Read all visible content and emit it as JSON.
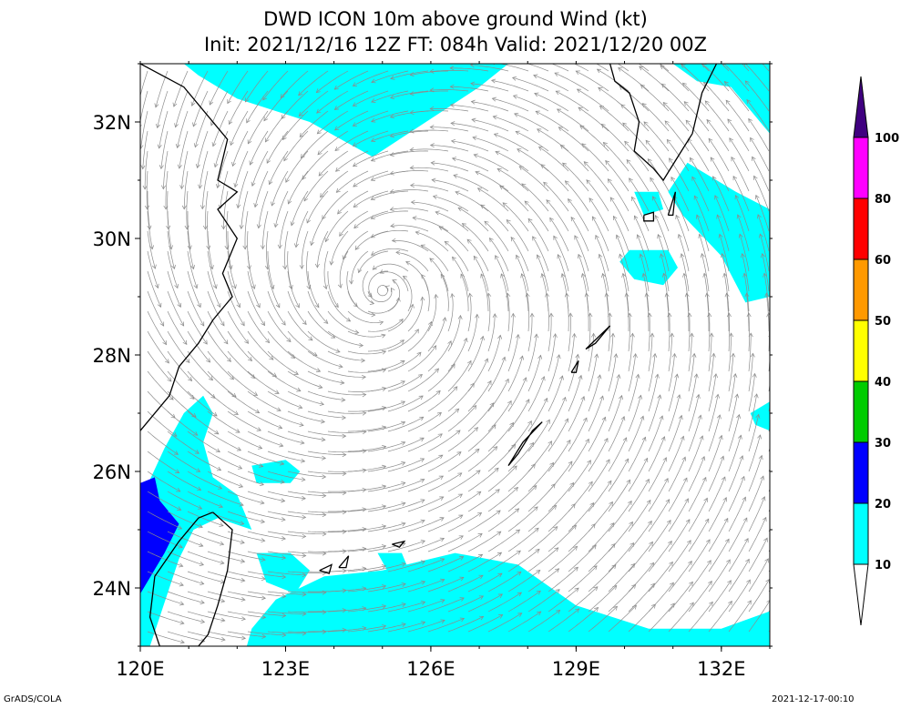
{
  "chart_data": {
    "type": "map",
    "title_line1": "DWD ICON 10m above ground Wind (kt)",
    "title_line2": "Init: 2021/12/16 12Z  FT: 084h  Valid: 2021/12/20 00Z",
    "lon_range": [
      120,
      133
    ],
    "lat_range": [
      23,
      33
    ],
    "x_ticks": [
      {
        "value": 120,
        "label": "120E"
      },
      {
        "value": 123,
        "label": "123E"
      },
      {
        "value": 126,
        "label": "126E"
      },
      {
        "value": 129,
        "label": "129E"
      },
      {
        "value": 132,
        "label": "132E"
      }
    ],
    "y_ticks": [
      {
        "value": 24,
        "label": "24N"
      },
      {
        "value": 26,
        "label": "26N"
      },
      {
        "value": 28,
        "label": "28N"
      },
      {
        "value": 30,
        "label": "30N"
      },
      {
        "value": 32,
        "label": "32N"
      }
    ],
    "grid": false,
    "cyclone_center": {
      "lon": 125.0,
      "lat": 29.1
    },
    "colorbar": {
      "position": "right",
      "levels": [
        {
          "label": "10",
          "color": "#ffffff"
        },
        {
          "label": "20",
          "color": "#00ffff"
        },
        {
          "label": "30",
          "color": "#0000ff"
        },
        {
          "label": "40",
          "color": "#00cc00"
        },
        {
          "label": "50",
          "color": "#ffff00"
        },
        {
          "label": "60",
          "color": "#ff9900"
        },
        {
          "label": "80",
          "color": "#ff0000"
        },
        {
          "label": "100",
          "color": "#ff00ff"
        }
      ],
      "over_color": "#400080"
    },
    "wind_regions": [
      {
        "name": "north-band",
        "speed_kt": "10-20",
        "color": "#00ffff",
        "polygon": [
          [
            120.9,
            33
          ],
          [
            127.6,
            33
          ],
          [
            127.0,
            32.6
          ],
          [
            124.8,
            31.4
          ],
          [
            123.5,
            32.0
          ],
          [
            122.0,
            32.4
          ],
          [
            121.2,
            32.8
          ]
        ]
      },
      {
        "name": "northeast-band",
        "speed_kt": "10-20",
        "color": "#00ffff",
        "polygon": [
          [
            131.0,
            33
          ],
          [
            133,
            33
          ],
          [
            133,
            31.8
          ],
          [
            132.2,
            32.6
          ],
          [
            131.5,
            32.7
          ]
        ]
      },
      {
        "name": "east-patch",
        "speed_kt": "10-20",
        "color": "#00ffff",
        "polygon": [
          [
            131.3,
            31.3
          ],
          [
            132.3,
            30.8
          ],
          [
            133,
            30.5
          ],
          [
            133,
            29.0
          ],
          [
            132.5,
            28.9
          ],
          [
            132.0,
            29.7
          ],
          [
            131.2,
            30.4
          ],
          [
            130.9,
            30.8
          ]
        ]
      },
      {
        "name": "east-small-1",
        "speed_kt": "10-20",
        "color": "#00ffff",
        "polygon": [
          [
            130.2,
            30.8
          ],
          [
            130.7,
            30.8
          ],
          [
            130.8,
            30.5
          ],
          [
            130.4,
            30.4
          ]
        ]
      },
      {
        "name": "east-small-2",
        "speed_kt": "10-20",
        "color": "#00ffff",
        "polygon": [
          [
            130.1,
            29.8
          ],
          [
            130.9,
            29.8
          ],
          [
            131.1,
            29.5
          ],
          [
            130.8,
            29.2
          ],
          [
            130.2,
            29.3
          ],
          [
            129.9,
            29.6
          ]
        ]
      },
      {
        "name": "east-small-3",
        "speed_kt": "10-20",
        "color": "#00ffff",
        "polygon": [
          [
            132.6,
            27.0
          ],
          [
            133,
            27.2
          ],
          [
            133,
            26.7
          ],
          [
            132.7,
            26.8
          ]
        ]
      },
      {
        "name": "south-band",
        "speed_kt": "10-20",
        "color": "#00ffff",
        "polygon": [
          [
            122.2,
            23.0
          ],
          [
            133,
            23.0
          ],
          [
            133,
            23.6
          ],
          [
            132.0,
            23.3
          ],
          [
            130.5,
            23.3
          ],
          [
            129.0,
            23.7
          ],
          [
            127.8,
            24.4
          ],
          [
            126.5,
            24.6
          ],
          [
            125.0,
            24.3
          ],
          [
            123.8,
            24.2
          ],
          [
            122.8,
            23.8
          ],
          [
            122.3,
            23.3
          ]
        ]
      },
      {
        "name": "west-band",
        "speed_kt": "10-20",
        "color": "#00ffff",
        "polygon": [
          [
            120.0,
            25.5
          ],
          [
            120.5,
            26.4
          ],
          [
            120.9,
            27.0
          ],
          [
            121.3,
            27.3
          ],
          [
            121.5,
            27.0
          ],
          [
            121.3,
            26.5
          ],
          [
            121.5,
            25.9
          ],
          [
            122.0,
            25.6
          ],
          [
            122.3,
            25.0
          ],
          [
            121.6,
            25.2
          ],
          [
            121.1,
            25.0
          ],
          [
            120.8,
            24.5
          ],
          [
            120.4,
            23.5
          ],
          [
            120.2,
            23.0
          ],
          [
            120.0,
            23.0
          ]
        ]
      },
      {
        "name": "west-blue",
        "speed_kt": "20-30",
        "color": "#0000ff",
        "polygon": [
          [
            120.0,
            23.9
          ],
          [
            120.5,
            24.6
          ],
          [
            120.8,
            25.1
          ],
          [
            120.4,
            25.5
          ],
          [
            120.3,
            25.9
          ],
          [
            120.0,
            25.8
          ]
        ]
      },
      {
        "name": "mid-patch-1",
        "speed_kt": "10-20",
        "color": "#00ffff",
        "polygon": [
          [
            122.3,
            26.1
          ],
          [
            123.0,
            26.2
          ],
          [
            123.3,
            26.0
          ],
          [
            123.1,
            25.8
          ],
          [
            122.4,
            25.8
          ]
        ]
      },
      {
        "name": "mid-patch-2",
        "speed_kt": "10-20",
        "color": "#00ffff",
        "polygon": [
          [
            122.4,
            24.6
          ],
          [
            123.1,
            24.6
          ],
          [
            123.5,
            24.3
          ],
          [
            123.2,
            23.9
          ],
          [
            122.6,
            24.1
          ]
        ]
      },
      {
        "name": "mid-patch-3",
        "speed_kt": "10-20",
        "color": "#00ffff",
        "polygon": [
          [
            124.9,
            24.6
          ],
          [
            125.4,
            24.6
          ],
          [
            125.5,
            24.4
          ],
          [
            125.1,
            24.3
          ]
        ]
      }
    ]
  },
  "footer": {
    "left": "GrADS/COLA",
    "right": "2021-12-17-00:10"
  }
}
